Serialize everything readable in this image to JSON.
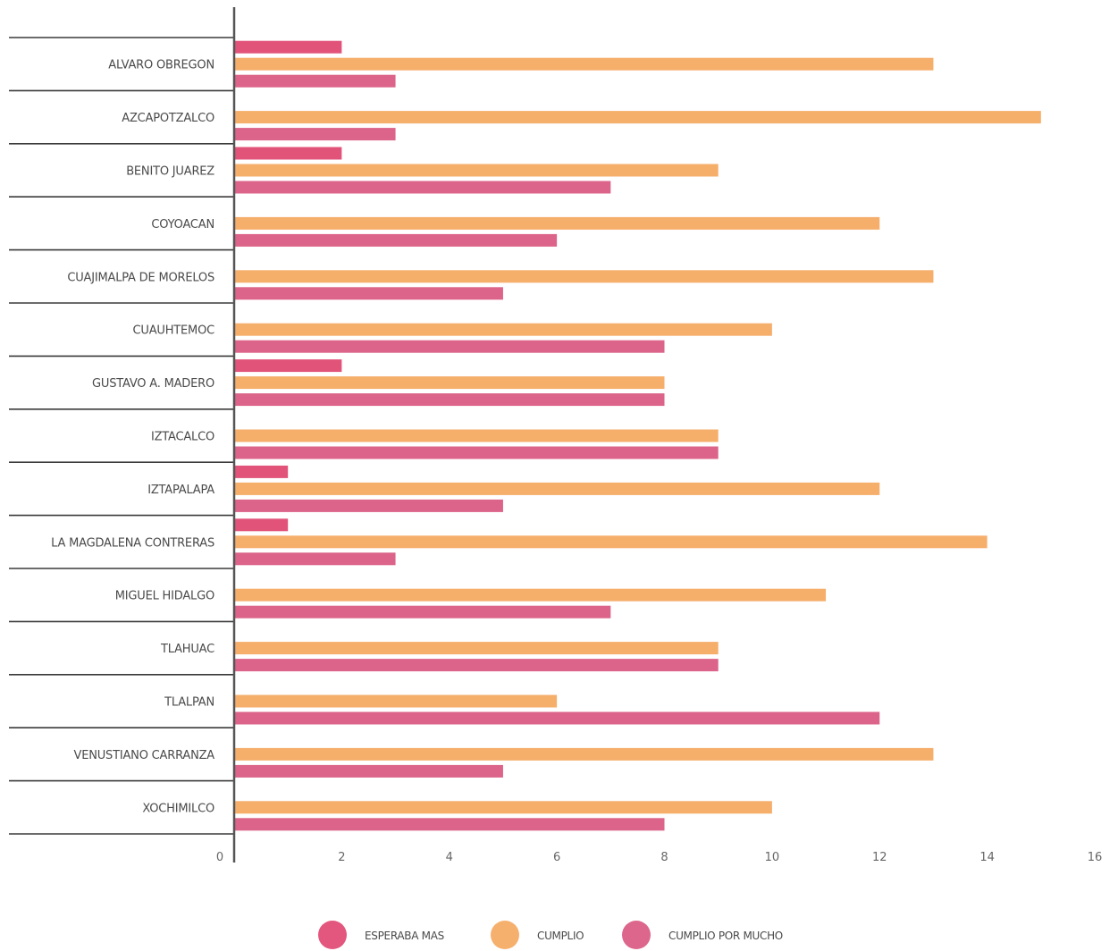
{
  "chart_data": {
    "type": "bar",
    "orientation": "horizontal",
    "title": "",
    "xlabel": "",
    "ylabel": "",
    "xlim": [
      0,
      16
    ],
    "xticks": [
      0,
      2,
      4,
      6,
      8,
      10,
      12,
      14,
      16
    ],
    "grid": false,
    "legend_position": "bottom",
    "categories": [
      "ALVARO OBREGON",
      "AZCAPOTZALCO",
      "BENITO JUAREZ",
      "COYOACAN",
      "CUAJIMALPA DE MORELOS",
      "CUAUHTEMOC",
      "GUSTAVO A. MADERO",
      "IZTACALCO",
      "IZTAPALAPA",
      "LA MAGDALENA CONTRERAS",
      "MIGUEL HIDALGO",
      "TLAHUAC",
      "TLALPAN",
      "VENUSTIANO CARRANZA",
      "XOCHIMILCO"
    ],
    "series": [
      {
        "name": "ESPERABA MAS",
        "color": "#e0446f",
        "values": [
          2,
          0,
          2,
          0,
          0,
          0,
          2,
          0,
          1,
          1,
          0,
          0,
          0,
          0,
          0
        ]
      },
      {
        "name": "CUMPLIO",
        "color": "#f5a75e",
        "values": [
          13,
          15,
          9,
          12,
          13,
          10,
          8,
          9,
          12,
          14,
          11,
          9,
          6,
          13,
          10
        ]
      },
      {
        "name": "CUMPLIO POR MUCHO",
        "color": "#d9567f",
        "values": [
          3,
          3,
          7,
          6,
          5,
          8,
          8,
          9,
          5,
          3,
          7,
          9,
          12,
          5,
          8
        ]
      }
    ]
  }
}
